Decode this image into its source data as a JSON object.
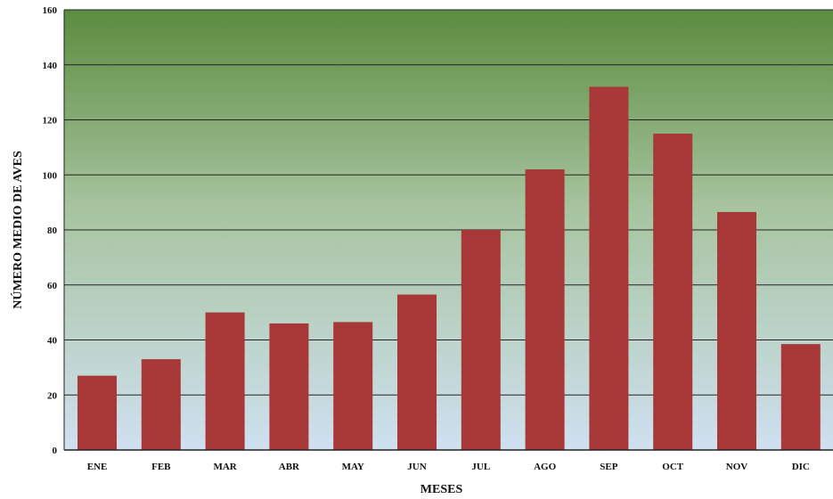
{
  "chart_data": {
    "type": "bar",
    "categories": [
      "ENE",
      "FEB",
      "MAR",
      "ABR",
      "MAY",
      "JUN",
      "JUL",
      "AGO",
      "SEP",
      "OCT",
      "NOV",
      "DIC"
    ],
    "values": [
      27,
      33,
      50,
      46,
      46.5,
      56.5,
      80,
      102,
      132,
      115,
      86.5,
      38.5
    ],
    "title": "",
    "xlabel": "MESES",
    "ylabel": "NÚMERO MEDIO DE AVES",
    "ylim": [
      0,
      160
    ],
    "yticks": [
      "0",
      "20",
      "40",
      "60",
      "80",
      "100",
      "120",
      "140",
      "160"
    ],
    "grid": true,
    "legend": "none",
    "colors": {
      "bar": "#a83838",
      "background_top": "#5b8c3e",
      "background_bottom": "#cfe0f0",
      "grid": "#222222"
    }
  }
}
